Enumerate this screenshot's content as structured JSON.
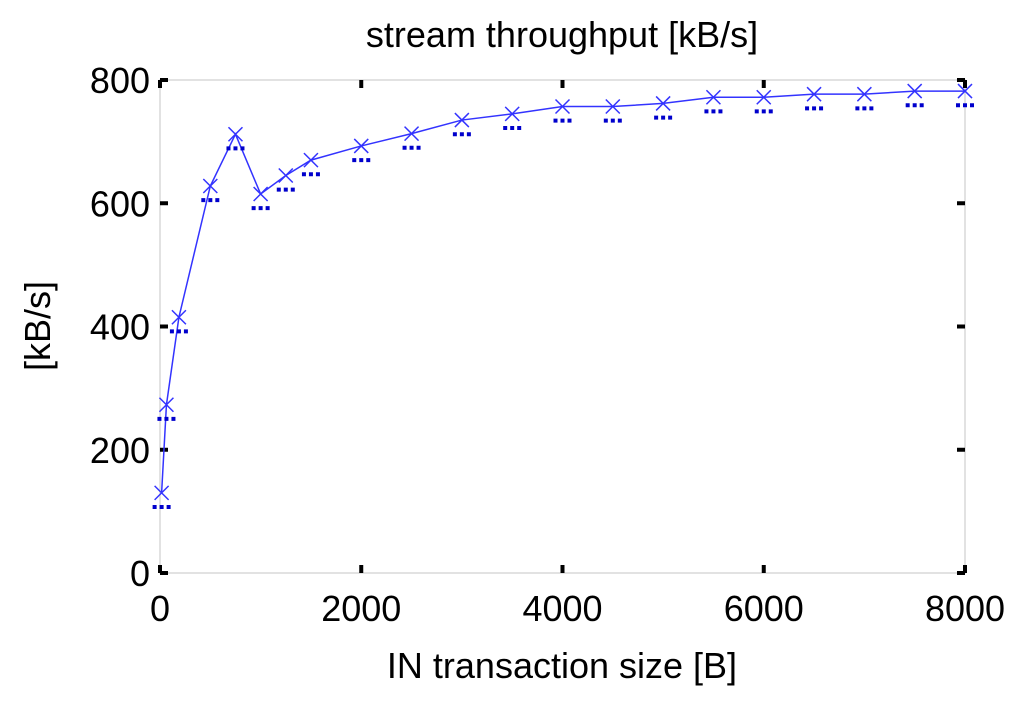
{
  "chart_data": {
    "type": "line",
    "title": "stream throughput [kB/s]",
    "xlabel": "IN transaction size [B]",
    "ylabel": "[kB/s]",
    "xlim": [
      0,
      8000
    ],
    "ylim": [
      0,
      800
    ],
    "xticks": [
      0,
      2000,
      4000,
      6000,
      8000
    ],
    "yticks": [
      0,
      200,
      400,
      600,
      800
    ],
    "grid": false,
    "legend": "none",
    "series": [
      {
        "color": "#3333ff",
        "marker": "x",
        "x": [
          16,
          64,
          188,
          500,
          750,
          1000,
          1250,
          1500,
          2000,
          2500,
          3000,
          3500,
          4000,
          4500,
          5000,
          5500,
          6000,
          6500,
          7000,
          7500,
          8000
        ],
        "y": [
          130,
          273,
          415,
          628,
          712,
          615,
          645,
          670,
          693,
          713,
          735,
          745,
          757,
          757,
          762,
          772,
          772,
          777,
          777,
          782,
          782
        ]
      }
    ],
    "markers": [
      {
        "color": "#0000cc",
        "marker": "dash",
        "x": [
          16,
          64,
          188,
          500,
          750,
          1000,
          1250,
          1500,
          2000,
          2500,
          3000,
          3500,
          4000,
          4500,
          5000,
          5500,
          6000,
          6500,
          7000,
          7500,
          8000
        ],
        "y": [
          120,
          263,
          405,
          618,
          702,
          605,
          635,
          660,
          683,
          703,
          725,
          735,
          747,
          747,
          752,
          762,
          762,
          767,
          767,
          772,
          772
        ]
      }
    ]
  }
}
